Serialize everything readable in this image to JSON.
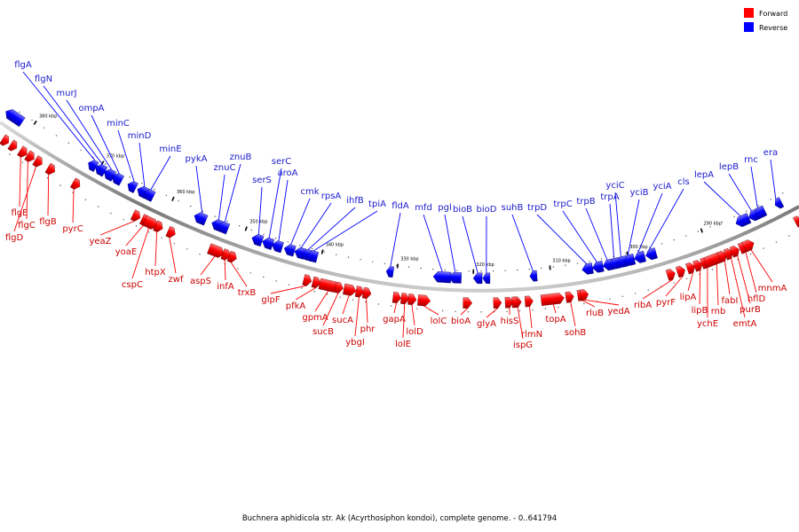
{
  "colors": {
    "forward": "#ff0000",
    "reverse": "#0000ff",
    "forward_label": "#cc0000",
    "reverse_label": "#1a1acc",
    "backbone": "#777777"
  },
  "legend": {
    "forward_label": "Forward",
    "reverse_label": "Reverse"
  },
  "caption": "Buchnera aphidicola str. Ak (Acyrthosiphon kondoi), complete genome. - 0..641794",
  "ticks": [
    "380 kbp",
    "370 kbp",
    "360 kbp",
    "350 kbp",
    "340 kbp",
    "330 kbp",
    "320 kbp",
    "310 kbp",
    "300 kbp",
    "290 kbp"
  ],
  "forward_genes": [
    "flgE",
    "flgC",
    "flgD",
    "flgB",
    "pyrC",
    "yeaZ",
    "yoaE",
    "cspC",
    "htpX",
    "zwf",
    "aspS",
    "infA",
    "trxB",
    "glpF",
    "pfkA",
    "gpmA",
    "sucB",
    "sucA",
    "ybgI",
    "phr",
    "gapA",
    "lolE",
    "lolD",
    "lolC",
    "bioA",
    "glyA",
    "hisS",
    "ispG",
    "rlmN",
    "topA",
    "sohB",
    "rluB",
    "yedA",
    "ribA",
    "pyrF",
    "lipA",
    "lipB",
    "ychE",
    "rnb",
    "fabI",
    "emtA",
    "purB",
    "hflD",
    "mnmA"
  ],
  "reverse_genes": [
    "flgA",
    "flgN",
    "murJ",
    "ompA",
    "minC",
    "minD",
    "minE",
    "pykA",
    "znuC",
    "znuB",
    "serS",
    "serC",
    "aroA",
    "cmk",
    "rpsA",
    "ihfB",
    "tpiA",
    "fldA",
    "mfd",
    "pgl",
    "bioB",
    "bioD",
    "suhB",
    "trpD",
    "trpC",
    "trpB",
    "trpA",
    "yciC",
    "yciB",
    "yciA",
    "cls",
    "lepA",
    "lepB",
    "rnc",
    "era"
  ]
}
